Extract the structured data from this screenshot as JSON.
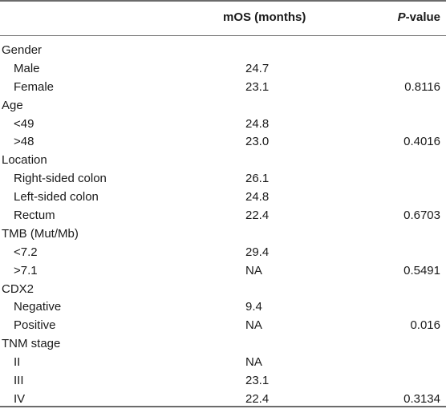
{
  "header": {
    "mos_label": "mOS (months)",
    "p_italic": "P",
    "p_suffix": "-value"
  },
  "rows": [
    {
      "label": "Gender",
      "sub": false,
      "mos": "",
      "p": ""
    },
    {
      "label": "Male",
      "sub": true,
      "mos": "24.7",
      "p": ""
    },
    {
      "label": "Female",
      "sub": true,
      "mos": "23.1",
      "p": "0.8116"
    },
    {
      "label": "Age",
      "sub": false,
      "mos": "",
      "p": ""
    },
    {
      "label": "<49",
      "sub": true,
      "mos": "24.8",
      "p": ""
    },
    {
      "label": ">48",
      "sub": true,
      "mos": "23.0",
      "p": "0.4016"
    },
    {
      "label": "Location",
      "sub": false,
      "mos": "",
      "p": ""
    },
    {
      "label": "Right-sided colon",
      "sub": true,
      "mos": "26.1",
      "p": ""
    },
    {
      "label": "Left-sided colon",
      "sub": true,
      "mos": "24.8",
      "p": ""
    },
    {
      "label": "Rectum",
      "sub": true,
      "mos": "22.4",
      "p": "0.6703"
    },
    {
      "label": "TMB (Mut/Mb)",
      "sub": false,
      "mos": "",
      "p": ""
    },
    {
      "label": "<7.2",
      "sub": true,
      "mos": "29.4",
      "p": ""
    },
    {
      "label": ">7.1",
      "sub": true,
      "mos": "NA",
      "p": "0.5491"
    },
    {
      "label": "CDX2",
      "sub": false,
      "mos": "",
      "p": ""
    },
    {
      "label": "Negative",
      "sub": true,
      "mos": "9.4",
      "p": ""
    },
    {
      "label": "Positive",
      "sub": true,
      "mos": "NA",
      "p": "0.016"
    },
    {
      "label": "TNM stage",
      "sub": false,
      "mos": "",
      "p": ""
    },
    {
      "label": "II",
      "sub": true,
      "mos": "NA",
      "p": ""
    },
    {
      "label": "III",
      "sub": true,
      "mos": "23.1",
      "p": ""
    },
    {
      "label": "IV",
      "sub": true,
      "mos": "22.4",
      "p": "0.3134"
    }
  ]
}
